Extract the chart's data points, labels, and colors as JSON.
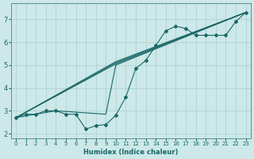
{
  "xlabel": "Humidex (Indice chaleur)",
  "background_color": "#cce8e8",
  "grid_color": "#aacece",
  "line_color": "#1a6868",
  "xlim": [
    -0.5,
    23.5
  ],
  "ylim": [
    1.8,
    7.7
  ],
  "xticks": [
    0,
    1,
    2,
    3,
    4,
    5,
    6,
    7,
    8,
    9,
    10,
    11,
    12,
    13,
    14,
    15,
    16,
    17,
    18,
    19,
    20,
    21,
    22,
    23
  ],
  "yticks": [
    2,
    3,
    4,
    5,
    6,
    7
  ],
  "series_jagged": {
    "x": [
      0,
      1,
      2,
      3,
      4,
      5,
      6,
      7,
      8,
      9,
      10,
      11,
      12,
      13,
      14,
      15,
      16,
      17,
      18,
      19,
      20,
      21,
      22,
      23
    ],
    "y": [
      2.7,
      2.85,
      2.85,
      3.0,
      3.0,
      2.85,
      2.85,
      2.2,
      2.35,
      2.4,
      2.8,
      3.6,
      4.85,
      5.2,
      5.85,
      6.5,
      6.7,
      6.6,
      6.3,
      6.3,
      6.3,
      6.3,
      6.9,
      7.3
    ]
  },
  "series_straight": [
    {
      "x": [
        0,
        4,
        9,
        10,
        23
      ],
      "y": [
        2.7,
        3.0,
        2.85,
        5.0,
        7.3
      ]
    },
    {
      "x": [
        0,
        10,
        23
      ],
      "y": [
        2.7,
        5.05,
        7.3
      ]
    },
    {
      "x": [
        0,
        10,
        23
      ],
      "y": [
        2.7,
        5.1,
        7.3
      ]
    },
    {
      "x": [
        0,
        10,
        23
      ],
      "y": [
        2.7,
        5.15,
        7.3
      ]
    }
  ]
}
